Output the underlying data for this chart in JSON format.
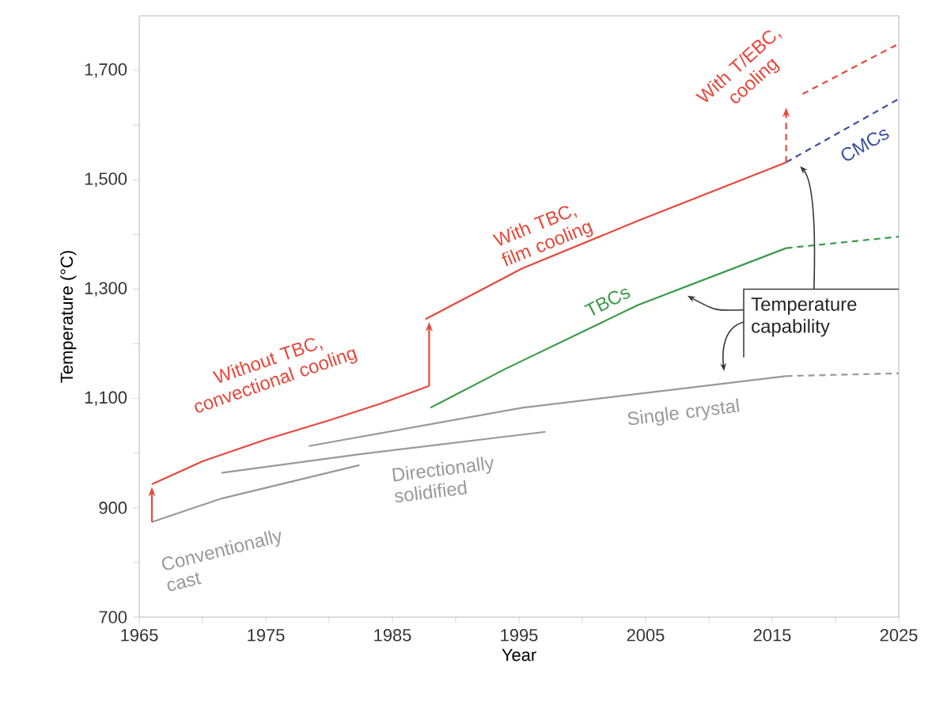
{
  "chart_data": {
    "type": "line",
    "xlabel": "Year",
    "ylabel": "Temperature (°C)",
    "xlim": [
      1965,
      2025
    ],
    "ylim": [
      700,
      1800
    ],
    "xticks": [
      1965,
      {
        "value": 1970,
        "label": null
      },
      1975,
      {
        "value": 1980,
        "label": null
      },
      1985,
      {
        "value": 1990,
        "label": null
      },
      1995,
      {
        "value": 2000,
        "label": null
      },
      2005,
      {
        "value": 2010,
        "label": null
      },
      2015,
      {
        "value": 2020,
        "label": null
      },
      2025
    ],
    "yticks": [
      700,
      {
        "value": 800,
        "label": null
      },
      900,
      {
        "value": 1000,
        "label": null
      },
      {
        "value": 1100,
        "label": "1,100"
      },
      {
        "value": 1200,
        "label": null
      },
      {
        "value": 1300,
        "label": "1,300"
      },
      {
        "value": 1400,
        "label": null
      },
      {
        "value": 1500,
        "label": "1,500"
      },
      {
        "value": 1600,
        "label": null
      },
      {
        "value": 1700,
        "label": "1,700"
      }
    ],
    "grid": false,
    "marker": "none",
    "series": [
      {
        "name": "Conventionally cast",
        "color": "#999999",
        "line_style": "solid",
        "x": [
          1966,
          1971.5,
          1982.4
        ],
        "values": [
          874,
          917,
          978
        ]
      },
      {
        "name": "Directionally solidified",
        "color": "#999999",
        "line_style": "solid",
        "x": [
          1971.5,
          1982.4,
          1997.1
        ],
        "values": [
          964,
          998,
          1039
        ]
      },
      {
        "name": "Single crystal",
        "color": "#999999",
        "line_style": "solid",
        "x": [
          1978.4,
          1995.25,
          2016.1
        ],
        "values": [
          1013,
          1083,
          1141
        ]
      },
      {
        "color": "#999999",
        "line_style": "dashed",
        "x": [
          2016.1,
          2025
        ],
        "values": [
          1141,
          1146
        ]
      },
      {
        "name": "Without TBC, convectional cooling",
        "color": "#e8473a",
        "line_style": "solid",
        "x": [
          1966,
          1970,
          1975,
          1980,
          1984,
          1987.9
        ],
        "values": [
          943,
          985,
          1025,
          1060,
          1090,
          1123
        ]
      },
      {
        "name": "With TBC, film cooling",
        "color": "#e8473a",
        "line_style": "solid",
        "x": [
          1987.6,
          1995.25,
          2004.4,
          2016.1
        ],
        "values": [
          1245,
          1338,
          1425,
          1532
        ]
      },
      {
        "name": "TBCs",
        "color": "#3a9a48",
        "line_style": "solid",
        "x": [
          1988,
          1994,
          2004.4,
          2016.1
        ],
        "values": [
          1083,
          1155,
          1271,
          1375
        ]
      },
      {
        "color": "#3a9a48",
        "line_style": "dashed",
        "x": [
          2016.1,
          2025
        ],
        "values": [
          1375,
          1396
        ]
      },
      {
        "name": "CMCs",
        "color": "#3a4fa0",
        "line_style": "dashed",
        "x": [
          2016.1,
          2025
        ],
        "values": [
          1532,
          1648
        ]
      },
      {
        "name": "With T/EBC, cooling",
        "color": "#e8473a",
        "line_style": "dashed",
        "x": [
          2017.4,
          2025
        ],
        "values": [
          1657,
          1749
        ]
      }
    ],
    "annotations": [
      "Temperature capability"
    ]
  }
}
